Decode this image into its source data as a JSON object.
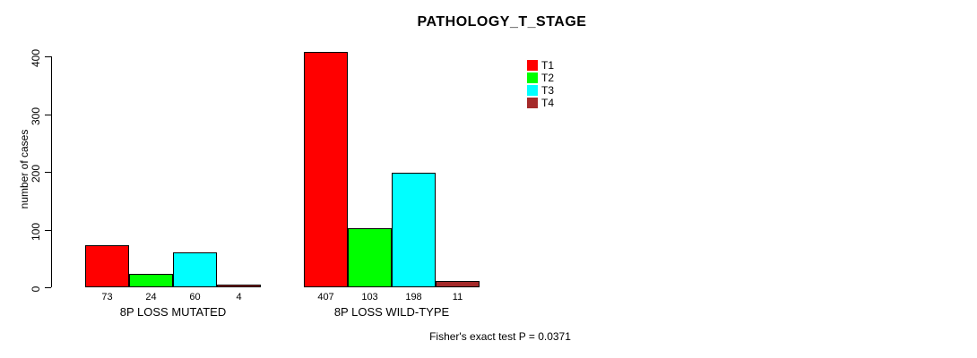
{
  "title": "PATHOLOGY_T_STAGE",
  "footer": "Fisher's exact test P = 0.0371",
  "colors": {
    "background": "#FFFFFF",
    "axis": "#000000",
    "text": "#000000"
  },
  "chart_data": {
    "type": "bar",
    "title": "PATHOLOGY_T_STAGE",
    "xlabel": "",
    "ylabel": "number of cases",
    "ylim": [
      0,
      400
    ],
    "yticks": [
      0,
      100,
      200,
      300,
      400
    ],
    "ytick_labels": [
      "0",
      "100",
      "200",
      "300",
      "400"
    ],
    "grid": false,
    "legend_position": "top-right",
    "categories": [
      "8P LOSS MUTATED",
      "8P LOSS WILD-TYPE"
    ],
    "series": [
      {
        "name": "T1",
        "color": "#FF0000",
        "values": [
          73,
          407
        ]
      },
      {
        "name": "T2",
        "color": "#00FF00",
        "values": [
          24,
          103
        ]
      },
      {
        "name": "T3",
        "color": "#00FFFF",
        "values": [
          60,
          198
        ]
      },
      {
        "name": "T4",
        "color": "#A52A2A",
        "values": [
          4,
          11
        ]
      }
    ],
    "bar_value_labels": [
      "73",
      "24",
      "60",
      "4",
      "407",
      "103",
      "198",
      "11"
    ],
    "annotation": "Fisher's exact test P = 0.0371"
  }
}
